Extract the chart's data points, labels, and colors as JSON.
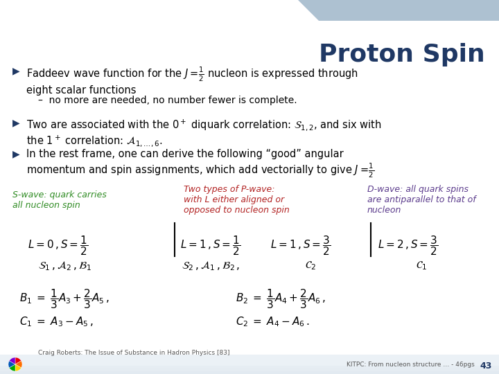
{
  "title": "Proton Spin",
  "title_color": "#1F3864",
  "title_fontsize": 26,
  "bg_color": "#FFFFFF",
  "header_bar_color": "#8BA7BE",
  "bullet_color": "#1F3864",
  "swave_color": "#2E8B22",
  "pwave_color": "#B22222",
  "dwave_color": "#5B3B8C",
  "footer_color": "#555555",
  "footer_left": "Craig Roberts: The Issue of Substance in Hadron Physics [83]",
  "footer_right": "KITPC: From nucleon structure … - 46pgs",
  "page_number": "43"
}
